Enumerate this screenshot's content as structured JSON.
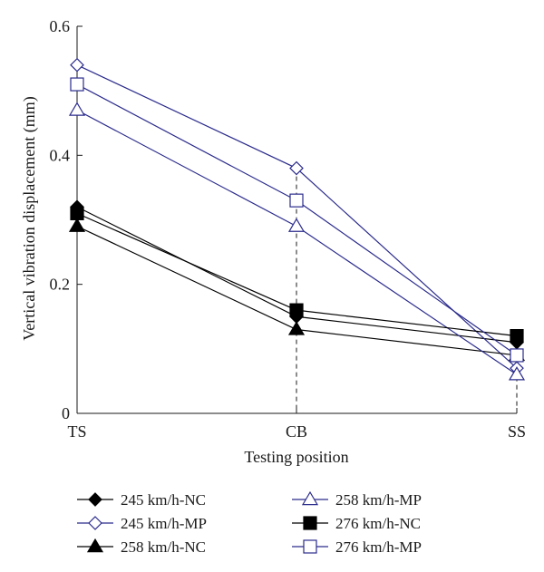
{
  "chart_data": {
    "type": "line",
    "xlabel": "Testing position",
    "ylabel": "Vertical vibration displacement (mm)",
    "categories": [
      "TS",
      "CB",
      "SS"
    ],
    "ylim": [
      0,
      0.6
    ],
    "yticks": [
      0,
      0.2,
      0.4,
      0.6
    ],
    "ytick_labels": [
      "0",
      "0.2",
      "0.4",
      "0.6"
    ],
    "grid": false,
    "legend_position": "bottom",
    "reference_lines": [
      {
        "x": "CB",
        "style": "dashed"
      },
      {
        "x": "SS",
        "style": "dashed"
      }
    ],
    "series": [
      {
        "name": "245 km/h-NC",
        "values": [
          0.32,
          0.15,
          0.11
        ],
        "color": "#000000",
        "marker": "diamond",
        "filled": true
      },
      {
        "name": "245 km/h-MP",
        "values": [
          0.54,
          0.38,
          0.07
        ],
        "color": "#2b2b8c",
        "marker": "diamond",
        "filled": false
      },
      {
        "name": "258 km/h-NC",
        "values": [
          0.29,
          0.13,
          0.09
        ],
        "color": "#000000",
        "marker": "triangle",
        "filled": true
      },
      {
        "name": "258 km/h-MP",
        "values": [
          0.47,
          0.29,
          0.06
        ],
        "color": "#2b2b8c",
        "marker": "triangle",
        "filled": false
      },
      {
        "name": "276 km/h-NC",
        "values": [
          0.31,
          0.16,
          0.12
        ],
        "color": "#000000",
        "marker": "square",
        "filled": true
      },
      {
        "name": "276 km/h-MP",
        "values": [
          0.51,
          0.33,
          0.09
        ],
        "color": "#2b2b8c",
        "marker": "square",
        "filled": false
      }
    ]
  }
}
